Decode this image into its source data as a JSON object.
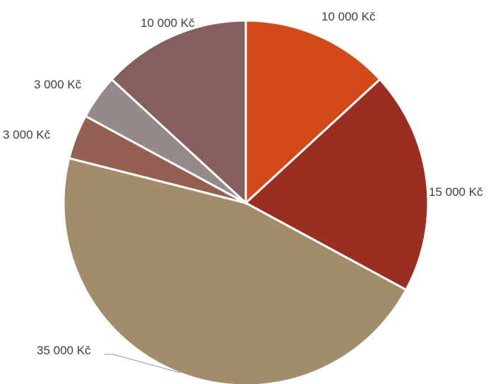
{
  "chart_data": {
    "type": "pie",
    "title": "",
    "start_angle_deg": 0,
    "direction": "clockwise",
    "legend": "none",
    "slices": [
      {
        "value": 10000,
        "label": "10 000 Kč",
        "color": "#D24A19"
      },
      {
        "value": 15000,
        "label": "15 000 Kč",
        "color": "#9A2E20"
      },
      {
        "value": 35000,
        "label": "35 000 Kč",
        "color": "#A28D6B"
      },
      {
        "value": 3000,
        "label": "3 000 Kč",
        "color": "#955F52"
      },
      {
        "value": 3000,
        "label": "3 000 Kč",
        "color": "#958A88"
      },
      {
        "value": 10000,
        "label": "10 000 Kč",
        "color": "#845F5D"
      }
    ]
  }
}
